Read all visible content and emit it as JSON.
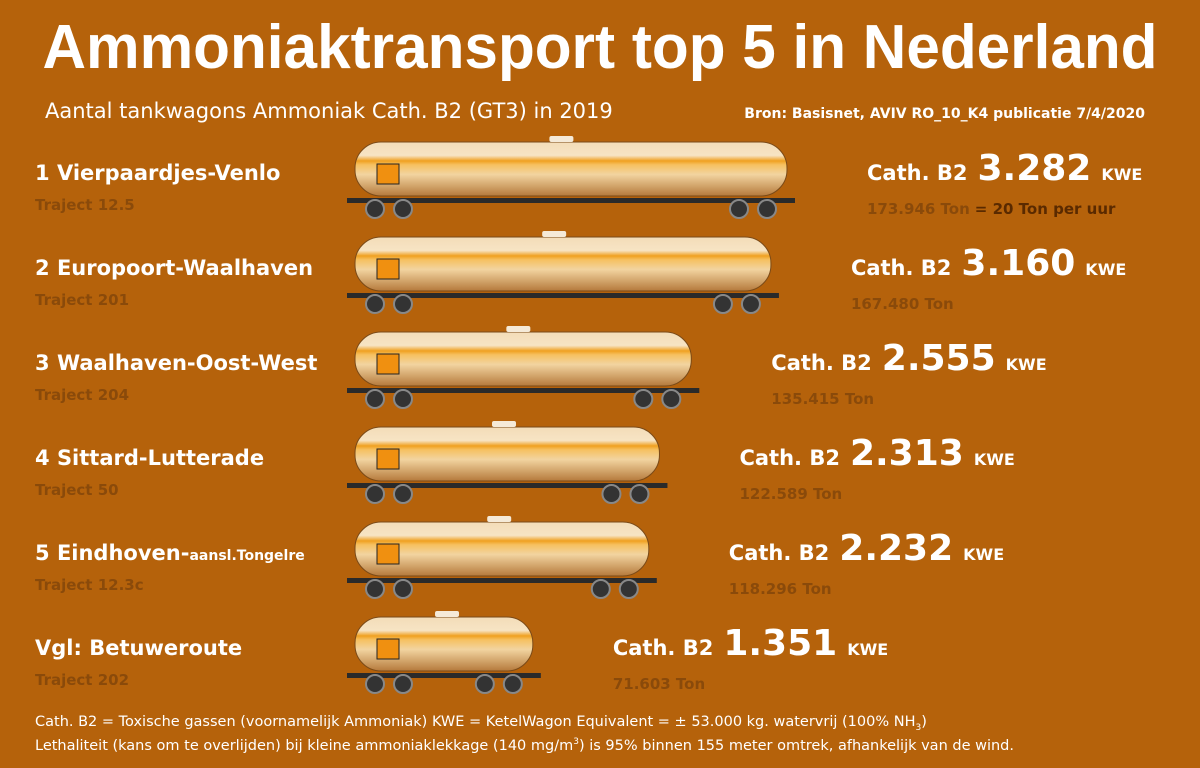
{
  "chart_data": {
    "type": "wagon-bar",
    "title": "Ammoniaktransport top 5 in Nederland",
    "subtitle": "Aantal tankwagons Ammoniak Cath. B2 (GT3) in 2019",
    "source": "Bron: Basisnet, AVIV RO_10_K4 publicatie 7/4/2020",
    "class_label": "Cath. B2",
    "unit": "KWE",
    "rows": [
      {
        "rank": "1",
        "name": "Vierpaardjes-Venlo",
        "traject": "Traject 12.5",
        "tons": "173.946 Ton",
        "note": "= 20 Ton per uur"
      },
      {
        "rank": "2",
        "name": "Europoort-Waalhaven",
        "traject": "Traject 201",
        "tons": "167.480 Ton"
      },
      {
        "rank": "3",
        "name": "Waalhaven-Oost-West",
        "traject": "Traject 204",
        "tons": "135.415 Ton"
      },
      {
        "rank": "4",
        "name": "Sittard-Lutterade",
        "traject": "Traject 50",
        "tons": "122.589 Ton"
      },
      {
        "rank": "5",
        "name": "Eindhoven-",
        "name_note": "aansl.Tongelre",
        "traject": "Traject 12.3c",
        "tons": "118.296 Ton"
      },
      {
        "rank": "Vgl:",
        "name": "Betuweroute",
        "traject": "Traject 202",
        "tons": "71.603 Ton"
      }
    ],
    "values": [
      3282,
      3160,
      2555,
      2313,
      2232,
      1351
    ],
    "value_labels": [
      "3.282",
      "3.160",
      "2.555",
      "2.313",
      "2.232",
      "1.351"
    ],
    "xlim": [
      0,
      3282
    ],
    "footnotes": [
      [
        "Cath. B2 = Toxische gassen (voornamelijk Ammoniak) KWE = KetelWagon Equivalent = ± 53.000 kg. watervrij (100% NH",
        "3",
        ")"
      ],
      [
        "Lethaliteit (kans om te overlijden) bij kleine ammoniaklekkage (140 mg/m",
        "3",
        ") is 95% binnen 155 meter omtrek, afhankelijk van de wind."
      ]
    ]
  }
}
